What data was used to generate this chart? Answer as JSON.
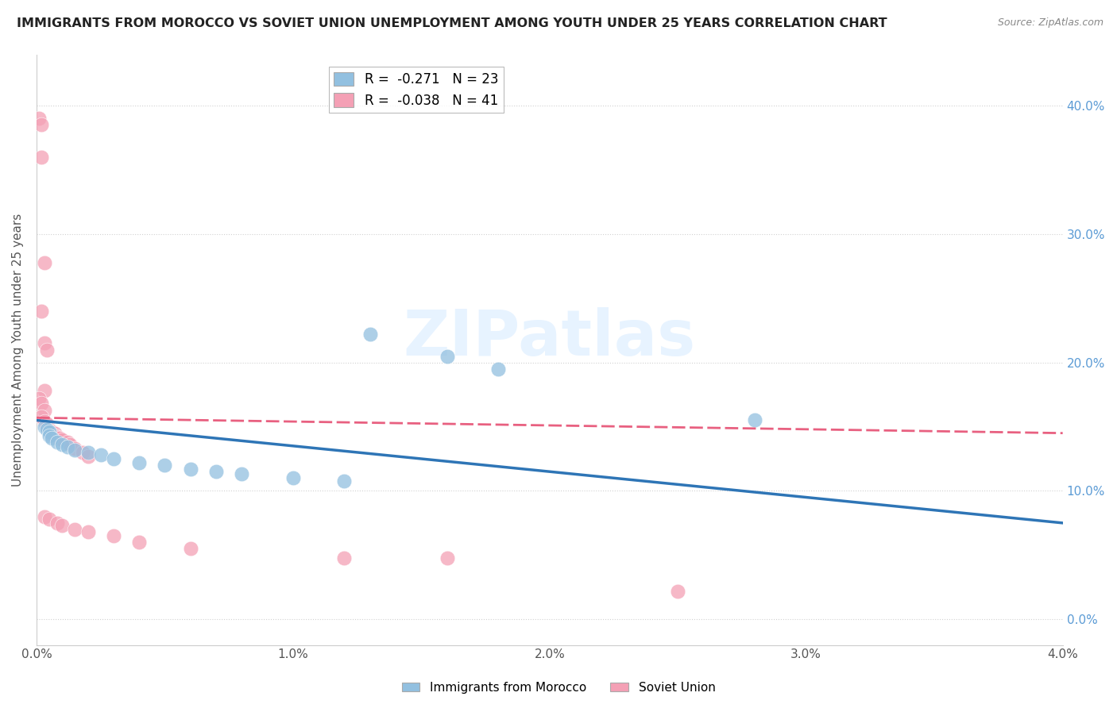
{
  "title": "IMMIGRANTS FROM MOROCCO VS SOVIET UNION UNEMPLOYMENT AMONG YOUTH UNDER 25 YEARS CORRELATION CHART",
  "source": "Source: ZipAtlas.com",
  "ylabel": "Unemployment Among Youth under 25 years",
  "xlim": [
    0.0,
    0.04
  ],
  "ylim": [
    -0.02,
    0.44
  ],
  "morocco_color": "#92C0E0",
  "soviet_color": "#F4A0B5",
  "legend_r_morocco": "R =  -0.271   N = 23",
  "legend_r_soviet": "R =  -0.038   N = 41",
  "morocco_scatter": [
    [
      0.0003,
      0.15
    ],
    [
      0.0004,
      0.148
    ],
    [
      0.0005,
      0.146
    ],
    [
      0.0005,
      0.143
    ],
    [
      0.0006,
      0.141
    ],
    [
      0.0008,
      0.138
    ],
    [
      0.001,
      0.136
    ],
    [
      0.0012,
      0.134
    ],
    [
      0.0015,
      0.132
    ],
    [
      0.002,
      0.13
    ],
    [
      0.0025,
      0.128
    ],
    [
      0.003,
      0.125
    ],
    [
      0.004,
      0.122
    ],
    [
      0.005,
      0.12
    ],
    [
      0.006,
      0.117
    ],
    [
      0.007,
      0.115
    ],
    [
      0.008,
      0.113
    ],
    [
      0.01,
      0.11
    ],
    [
      0.012,
      0.108
    ],
    [
      0.013,
      0.222
    ],
    [
      0.016,
      0.205
    ],
    [
      0.018,
      0.195
    ],
    [
      0.028,
      0.155
    ]
  ],
  "soviet_scatter": [
    [
      0.0001,
      0.39
    ],
    [
      0.0002,
      0.385
    ],
    [
      0.0002,
      0.36
    ],
    [
      0.0003,
      0.278
    ],
    [
      0.0002,
      0.24
    ],
    [
      0.0003,
      0.215
    ],
    [
      0.0004,
      0.21
    ],
    [
      0.0003,
      0.178
    ],
    [
      0.0001,
      0.172
    ],
    [
      0.0002,
      0.168
    ],
    [
      0.0003,
      0.163
    ],
    [
      0.0002,
      0.158
    ],
    [
      0.0003,
      0.154
    ],
    [
      0.0004,
      0.152
    ],
    [
      0.0004,
      0.15
    ],
    [
      0.0005,
      0.148
    ],
    [
      0.0005,
      0.147
    ],
    [
      0.0006,
      0.146
    ],
    [
      0.0007,
      0.145
    ],
    [
      0.0006,
      0.144
    ],
    [
      0.0007,
      0.143
    ],
    [
      0.0008,
      0.142
    ],
    [
      0.0009,
      0.141
    ],
    [
      0.001,
      0.14
    ],
    [
      0.0012,
      0.138
    ],
    [
      0.0013,
      0.136
    ],
    [
      0.0015,
      0.133
    ],
    [
      0.0018,
      0.13
    ],
    [
      0.002,
      0.127
    ],
    [
      0.0003,
      0.08
    ],
    [
      0.0005,
      0.078
    ],
    [
      0.0008,
      0.075
    ],
    [
      0.001,
      0.073
    ],
    [
      0.0015,
      0.07
    ],
    [
      0.002,
      0.068
    ],
    [
      0.003,
      0.065
    ],
    [
      0.004,
      0.06
    ],
    [
      0.006,
      0.055
    ],
    [
      0.012,
      0.048
    ],
    [
      0.016,
      0.048
    ],
    [
      0.025,
      0.022
    ]
  ],
  "morocco_line_x": [
    0.0,
    0.04
  ],
  "morocco_line_y": [
    0.155,
    0.075
  ],
  "soviet_line_x": [
    0.0,
    0.04
  ],
  "soviet_line_y": [
    0.157,
    0.145
  ],
  "watermark": "ZIPatlas",
  "background_color": "#FFFFFF",
  "grid_color": "#CCCCCC",
  "title_color": "#222222",
  "axis_color": "#555555",
  "ytick_right_color": "#5B9BD5",
  "ytick_vals": [
    0.0,
    0.1,
    0.2,
    0.3,
    0.4
  ]
}
